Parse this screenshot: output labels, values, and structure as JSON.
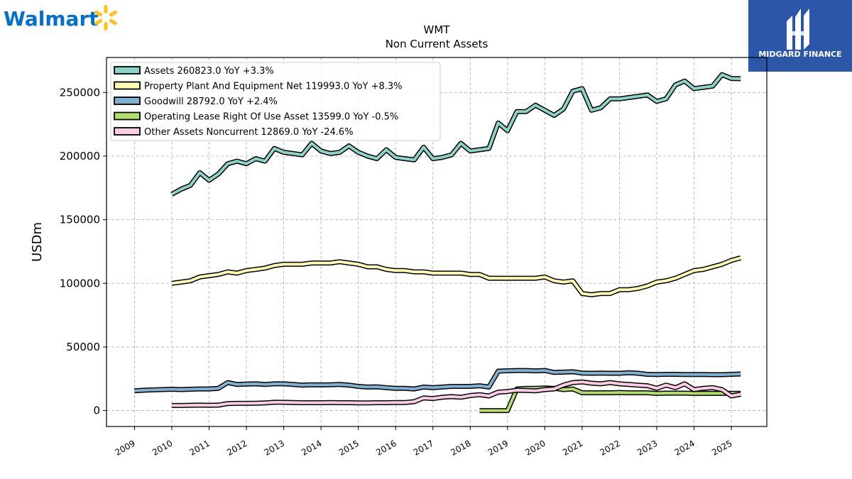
{
  "brand": {
    "walmart_name": "Walmart",
    "walmart_icon": "spark-icon",
    "walmart_color": "#0071ce",
    "walmart_spark_color": "#ffc220",
    "midgard_name": "MIDGARD FINANCE",
    "midgard_bg": "#2c56a8"
  },
  "chart_data": {
    "type": "line",
    "title": "WMT",
    "subtitle": "Non Current  Assets",
    "ylabel": "USDm",
    "xlabel": "",
    "ylim": [
      -12500,
      277500
    ],
    "xlim": [
      2008.25,
      2025.95
    ],
    "yticks": [
      0,
      50000,
      100000,
      150000,
      200000,
      250000
    ],
    "ytick_labels": [
      "0",
      "50000",
      "100000",
      "150000",
      "200000",
      "250000"
    ],
    "xticks": [
      2009,
      2010,
      2011,
      2012,
      2013,
      2014,
      2015,
      2016,
      2017,
      2018,
      2019,
      2020,
      2021,
      2022,
      2023,
      2024,
      2025
    ],
    "xtick_labels": [
      "2009",
      "2010",
      "2011",
      "2012",
      "2013",
      "2014",
      "2015",
      "2016",
      "2017",
      "2018",
      "2019",
      "2020",
      "2021",
      "2022",
      "2023",
      "2024",
      "2025"
    ],
    "grid": true,
    "legend_position": "top-left",
    "series": [
      {
        "name": "Assets",
        "legend": "Assets  260823.0 YoY +3.3%",
        "color": "#8dd3c7",
        "x": [
          2010.0,
          2010.25,
          2010.5,
          2010.75,
          2011.0,
          2011.25,
          2011.5,
          2011.75,
          2012.0,
          2012.25,
          2012.5,
          2012.75,
          2013.0,
          2013.25,
          2013.5,
          2013.75,
          2014.0,
          2014.25,
          2014.5,
          2014.75,
          2015.0,
          2015.25,
          2015.5,
          2015.75,
          2016.0,
          2016.25,
          2016.5,
          2016.75,
          2017.0,
          2017.25,
          2017.5,
          2017.75,
          2018.0,
          2018.25,
          2018.5,
          2018.75,
          2019.0,
          2019.25,
          2019.5,
          2019.75,
          2020.0,
          2020.25,
          2020.5,
          2020.75,
          2021.0,
          2021.25,
          2021.5,
          2021.75,
          2022.0,
          2022.25,
          2022.5,
          2022.75,
          2023.0,
          2023.25,
          2023.5,
          2023.75,
          2024.0,
          2024.25,
          2024.5,
          2024.75,
          2025.0,
          2025.25
        ],
        "values": [
          170000,
          174000,
          177000,
          187000,
          181000,
          186000,
          194000,
          196000,
          194000,
          198000,
          196000,
          206000,
          203000,
          202000,
          201000,
          210000,
          204000,
          202000,
          203000,
          208000,
          203000,
          200000,
          198000,
          205000,
          199000,
          198000,
          197000,
          207000,
          198000,
          199000,
          201000,
          210000,
          204000,
          205000,
          206000,
          226000,
          220000,
          235000,
          235000,
          240000,
          236000,
          232000,
          237000,
          251000,
          253000,
          236000,
          238000,
          245000,
          245000,
          246000,
          247000,
          248000,
          243000,
          245000,
          256000,
          259000,
          253000,
          254000,
          255000,
          264000,
          261000,
          260823
        ]
      },
      {
        "name": "Property Plant And Equipment Net",
        "legend": "Property Plant And Equipment Net  119993.0 YoY +8.3%",
        "color": "#ffffb3",
        "x": [
          2010.0,
          2010.25,
          2010.5,
          2010.75,
          2011.0,
          2011.25,
          2011.5,
          2011.75,
          2012.0,
          2012.25,
          2012.5,
          2012.75,
          2013.0,
          2013.25,
          2013.5,
          2013.75,
          2014.0,
          2014.25,
          2014.5,
          2014.75,
          2015.0,
          2015.25,
          2015.5,
          2015.75,
          2016.0,
          2016.25,
          2016.5,
          2016.75,
          2017.0,
          2017.25,
          2017.5,
          2017.75,
          2018.0,
          2018.25,
          2018.5,
          2018.75,
          2019.0,
          2019.25,
          2019.5,
          2019.75,
          2020.0,
          2020.25,
          2020.5,
          2020.75,
          2021.0,
          2021.25,
          2021.5,
          2021.75,
          2022.0,
          2022.25,
          2022.5,
          2022.75,
          2023.0,
          2023.25,
          2023.5,
          2023.75,
          2024.0,
          2024.25,
          2024.5,
          2024.75,
          2025.0,
          2025.25
        ],
        "values": [
          100000,
          101000,
          102000,
          105000,
          106000,
          107000,
          109000,
          108000,
          110000,
          111000,
          112000,
          114000,
          115000,
          115000,
          115000,
          116000,
          116000,
          116000,
          117000,
          116000,
          115000,
          113000,
          113000,
          111000,
          110000,
          110000,
          109000,
          109000,
          108000,
          108000,
          108000,
          108000,
          107000,
          107000,
          104000,
          104000,
          104000,
          104000,
          104000,
          104000,
          105000,
          102000,
          101000,
          102000,
          92000,
          91000,
          92000,
          92000,
          95000,
          95000,
          96000,
          98000,
          101000,
          102000,
          104000,
          107000,
          110000,
          111000,
          113000,
          115000,
          118000,
          119993
        ]
      },
      {
        "name": "Goodwill",
        "legend": "Goodwill  28792.0 YoY +2.4%",
        "color": "#80b1d3",
        "x": [
          2009.0,
          2009.25,
          2009.5,
          2009.75,
          2010.0,
          2010.25,
          2010.5,
          2010.75,
          2011.0,
          2011.25,
          2011.5,
          2011.75,
          2012.0,
          2012.25,
          2012.5,
          2012.75,
          2013.0,
          2013.25,
          2013.5,
          2013.75,
          2014.0,
          2014.25,
          2014.5,
          2014.75,
          2015.0,
          2015.25,
          2015.5,
          2015.75,
          2016.0,
          2016.25,
          2016.5,
          2016.75,
          2017.0,
          2017.25,
          2017.5,
          2017.75,
          2018.0,
          2018.25,
          2018.5,
          2018.75,
          2019.0,
          2019.25,
          2019.5,
          2019.75,
          2020.0,
          2020.25,
          2020.5,
          2020.75,
          2021.0,
          2021.25,
          2021.5,
          2021.75,
          2022.0,
          2022.25,
          2022.5,
          2022.75,
          2023.0,
          2023.25,
          2023.5,
          2023.75,
          2024.0,
          2024.25,
          2024.5,
          2024.75,
          2025.0,
          2025.25
        ],
        "values": [
          15500,
          16000,
          16300,
          16500,
          16800,
          16500,
          16800,
          17000,
          17000,
          17500,
          22000,
          20500,
          20800,
          21000,
          20500,
          21000,
          21000,
          20500,
          20000,
          20300,
          20200,
          20300,
          20500,
          20000,
          19000,
          18500,
          18700,
          18000,
          17500,
          17500,
          17000,
          18500,
          18000,
          18500,
          19000,
          19000,
          19000,
          19500,
          18500,
          31000,
          31300,
          31500,
          31500,
          31200,
          31500,
          30000,
          30200,
          30500,
          29500,
          29300,
          29500,
          29300,
          29300,
          29800,
          29300,
          28500,
          28300,
          28500,
          28500,
          28300,
          28400,
          28300,
          28200,
          28200,
          28500,
          28792
        ]
      },
      {
        "name": "Operating Lease Right Of Use Asset",
        "legend": "Operating Lease Right Of Use Asset  13599.0 YoY -0.5%",
        "color": "#b3de69",
        "x": [
          2018.25,
          2018.5,
          2018.75,
          2019.0,
          2019.25,
          2019.5,
          2019.75,
          2020.0,
          2020.25,
          2020.5,
          2020.75,
          2021.0,
          2021.25,
          2021.5,
          2021.75,
          2022.0,
          2022.25,
          2022.5,
          2022.75,
          2023.0,
          2023.25,
          2023.5,
          2023.75,
          2024.0,
          2024.25,
          2024.5,
          2024.75,
          2025.0,
          2025.25
        ],
        "values": [
          0,
          0,
          0,
          0,
          17000,
          17500,
          17500,
          17800,
          17500,
          16500,
          17000,
          14000,
          14000,
          14000,
          14000,
          14200,
          14000,
          14000,
          14000,
          13500,
          13700,
          13700,
          13700,
          13500,
          13600,
          13500,
          13600,
          13600,
          13599
        ]
      },
      {
        "name": "Other Assets Noncurrent",
        "legend": "Other Assets Noncurrent  12869.0 YoY -24.6%",
        "color": "#fccde5",
        "x": [
          2010.0,
          2010.25,
          2010.5,
          2010.75,
          2011.0,
          2011.25,
          2011.5,
          2011.75,
          2012.0,
          2012.25,
          2012.5,
          2012.75,
          2013.0,
          2013.25,
          2013.5,
          2013.75,
          2014.0,
          2014.25,
          2014.5,
          2014.75,
          2015.0,
          2015.25,
          2015.5,
          2015.75,
          2016.0,
          2016.25,
          2016.5,
          2016.75,
          2017.0,
          2017.25,
          2017.5,
          2017.75,
          2018.0,
          2018.25,
          2018.5,
          2018.75,
          2019.0,
          2019.25,
          2019.5,
          2019.75,
          2020.0,
          2020.25,
          2020.5,
          2020.75,
          2021.0,
          2021.25,
          2021.5,
          2021.75,
          2022.0,
          2022.25,
          2022.5,
          2022.75,
          2023.0,
          2023.25,
          2023.5,
          2023.75,
          2024.0,
          2024.25,
          2024.5,
          2024.75,
          2025.0,
          2025.25
        ],
        "values": [
          4000,
          4000,
          4200,
          4300,
          4200,
          4300,
          5500,
          5700,
          5700,
          5800,
          6000,
          6500,
          6500,
          6300,
          6200,
          6200,
          6200,
          6300,
          6200,
          6200,
          6000,
          6000,
          6200,
          6200,
          6300,
          6300,
          7000,
          10000,
          9500,
          10500,
          11000,
          10500,
          11800,
          12500,
          11500,
          14500,
          15000,
          16000,
          15800,
          15500,
          16500,
          17000,
          20000,
          22000,
          22500,
          21500,
          21000,
          22000,
          21000,
          20500,
          20000,
          19500,
          17500,
          20000,
          18000,
          21000,
          16500,
          17500,
          18000,
          16500,
          11500,
          12869
        ]
      }
    ]
  }
}
